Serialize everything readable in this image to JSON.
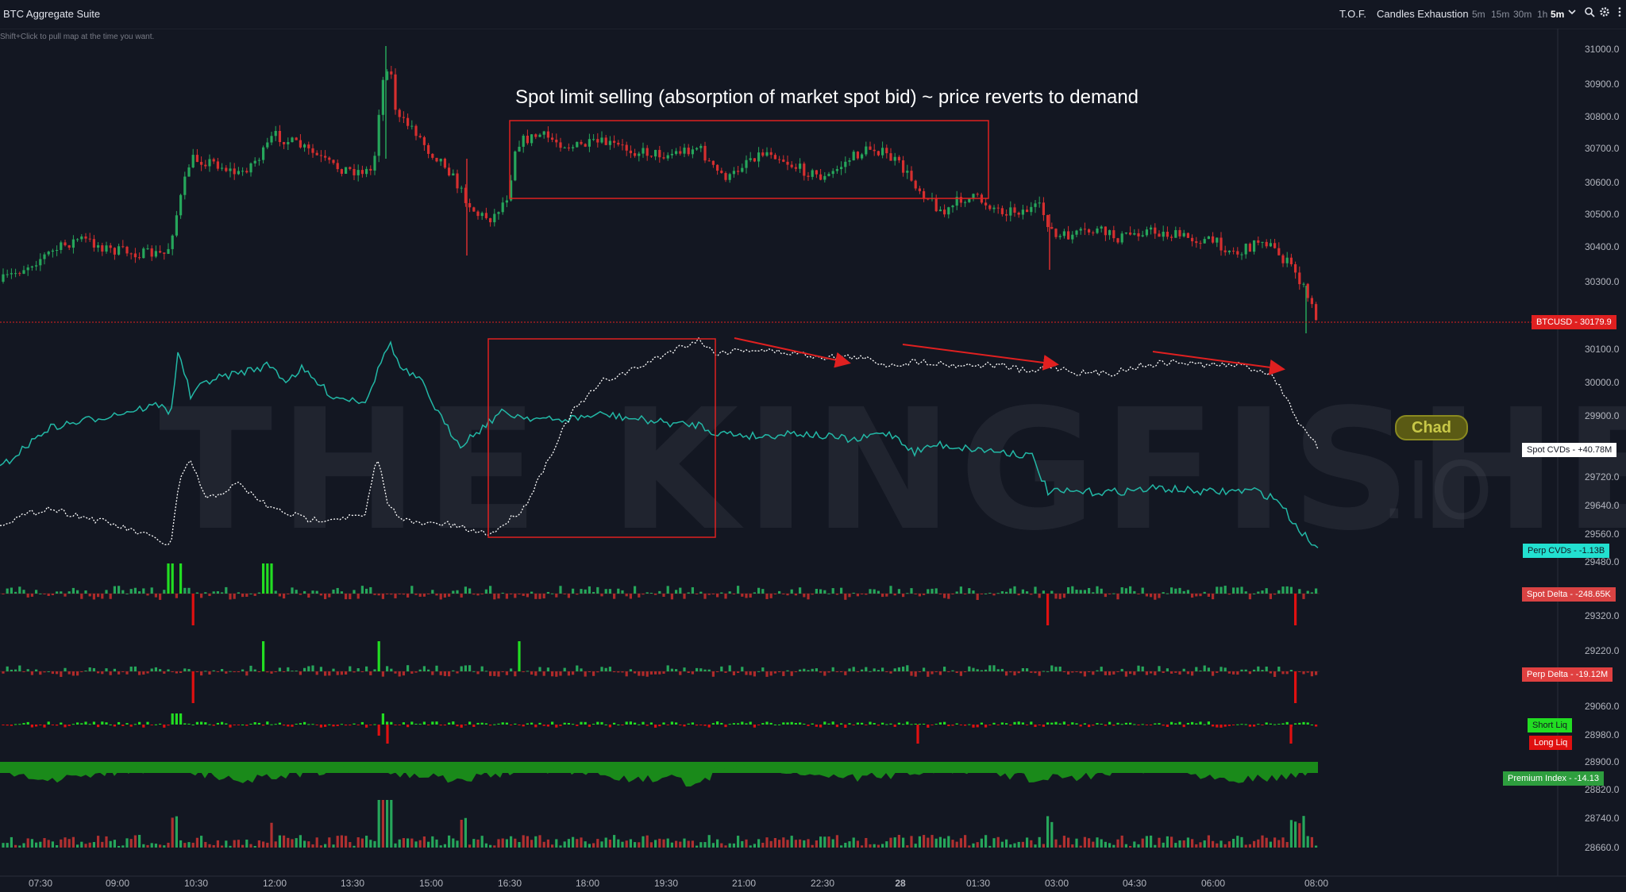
{
  "app": {
    "title": "BTC Aggregate Suite",
    "hint": "Shift+Click to pull map at the time you want."
  },
  "toolbar": {
    "tof": "T.O.F.",
    "candles_exhaustion": "Candles Exhaustion",
    "timeframes": [
      "5m",
      "15m",
      "30m",
      "1h"
    ],
    "selected_timeframe": "5m",
    "icons": [
      "chevron-down-icon",
      "search-icon",
      "gear-icon",
      "more-vertical-icon"
    ]
  },
  "annotation": "Spot limit selling (absorption of market spot bid) ~ price reverts to demand",
  "watermark": {
    "main": "THE KINGFISHER",
    "suffix": ".IO"
  },
  "chad_badge": "Chad",
  "colors": {
    "background": "#131722",
    "up": "#26a65b",
    "down": "#d62f2f",
    "cyan": "#22b8a6",
    "bright_green": "#22dd22",
    "premium_fill": "#1a8a1a",
    "box": "#e02020"
  },
  "price_axis": [
    "31000.0",
    "30900.0",
    "30800.0",
    "30700.0",
    "30600.0",
    "30500.0",
    "30400.0",
    "30300.0",
    "30100.0",
    "30000.0",
    "29900.0",
    "29720.0",
    "29640.0",
    "29560.0",
    "29480.0",
    "29320.0",
    "29220.0",
    "29060.0",
    "28980.0",
    "28900.0",
    "28820.0",
    "28740.0",
    "28660.0"
  ],
  "time_axis": [
    "07:30",
    "09:00",
    "10:30",
    "12:00",
    "13:30",
    "15:00",
    "16:30",
    "18:00",
    "19:30",
    "21:00",
    "22:30",
    "28",
    "01:30",
    "03:00",
    "04:30",
    "06:00",
    "08:00"
  ],
  "badges": {
    "btcusd": {
      "label": "BTCUSD",
      "value": "30179.9"
    },
    "spot_cvds": {
      "label": "Spot CVDs",
      "value": "+40.78M"
    },
    "perp_cvds": {
      "label": "Perp CVDs",
      "value": "-1.13B"
    },
    "spot_delta": {
      "label": "Spot Delta",
      "value": "-248.65K"
    },
    "perp_delta": {
      "label": "Perp Delta",
      "value": "-19.12M"
    },
    "short_liq": "Short Liq",
    "long_liq": "Long Liq",
    "premium_index": {
      "label": "Premium Index",
      "value": "-14.13"
    }
  }
}
